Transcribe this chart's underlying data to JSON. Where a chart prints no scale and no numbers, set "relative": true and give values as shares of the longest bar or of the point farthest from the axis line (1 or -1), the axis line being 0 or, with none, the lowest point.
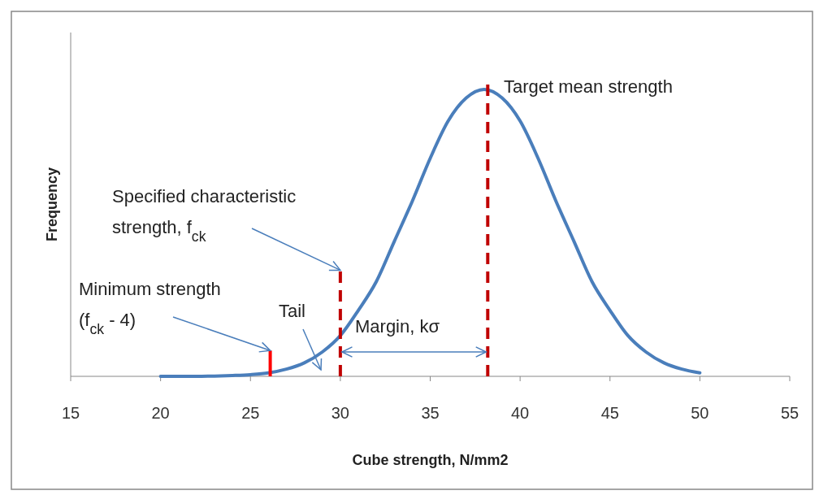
{
  "chart_data": {
    "type": "line",
    "xlabel": "Cube strength, N/mm2",
    "ylabel": "Frequency",
    "relative": true,
    "xlim": [
      15,
      55
    ],
    "xticks": [
      15,
      20,
      25,
      30,
      35,
      40,
      45,
      50,
      55
    ],
    "tick_labels": "x",
    "grid": false,
    "line_style": "solid",
    "x": [
      20,
      21,
      22,
      23,
      24,
      25,
      26,
      27,
      28,
      29,
      30,
      31,
      32,
      33,
      34,
      35,
      36,
      37,
      38,
      39,
      40,
      41,
      42,
      43,
      44,
      45,
      46,
      47,
      48,
      49,
      50
    ],
    "series": [
      {
        "color": "#4a7ebb",
        "values": [
          0,
          0,
          0,
          0.001,
          0.003,
          0.006,
          0.012,
          0.025,
          0.047,
          0.085,
          0.142,
          0.23,
          0.33,
          0.47,
          0.61,
          0.76,
          0.89,
          0.97,
          1,
          0.97,
          0.89,
          0.76,
          0.61,
          0.47,
          0.33,
          0.23,
          0.142,
          0.085,
          0.047,
          0.025,
          0.012
        ]
      }
    ],
    "ref_lines": [
      {
        "axis": "x",
        "value": 26.1,
        "color": "#ff0000",
        "line_style": "solid"
      },
      {
        "axis": "x",
        "value": 30,
        "color": "#c00000",
        "line_style": "dashed"
      },
      {
        "axis": "x",
        "value": 38.2,
        "color": "#c00000",
        "line_style": "dashed"
      }
    ],
    "annotations": [
      {
        "text": "Target mean strength",
        "x": 38,
        "y": 1
      },
      {
        "text": "Specified characteristic\nstrength, f$_{ck}$",
        "x": 30,
        "y": 0.37
      },
      {
        "text": "Minimum strength\n(f$_{ck}$ - 4)",
        "x": 26.1,
        "y": 0.09
      },
      "Tail",
      "Margin, kσ"
    ]
  }
}
